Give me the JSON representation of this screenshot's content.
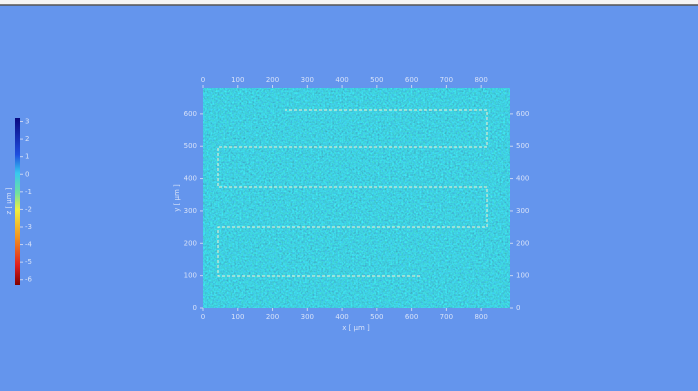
{
  "x_axis": {
    "label": "x [ µm ]",
    "range": [
      0,
      883
    ],
    "ticks": [
      0,
      100,
      200,
      300,
      400,
      500,
      600,
      700,
      800
    ]
  },
  "y_axis": {
    "label": "y [ µm ]",
    "range": [
      0,
      680
    ],
    "ticks": [
      0,
      100,
      200,
      300,
      400,
      500,
      600
    ]
  },
  "colorbar": {
    "label": "z [ µm ]",
    "range": [
      -6.3,
      3.2
    ],
    "ticks": [
      3,
      2,
      1,
      0,
      -1,
      -2,
      -3,
      -4,
      -5,
      -6
    ]
  }
}
